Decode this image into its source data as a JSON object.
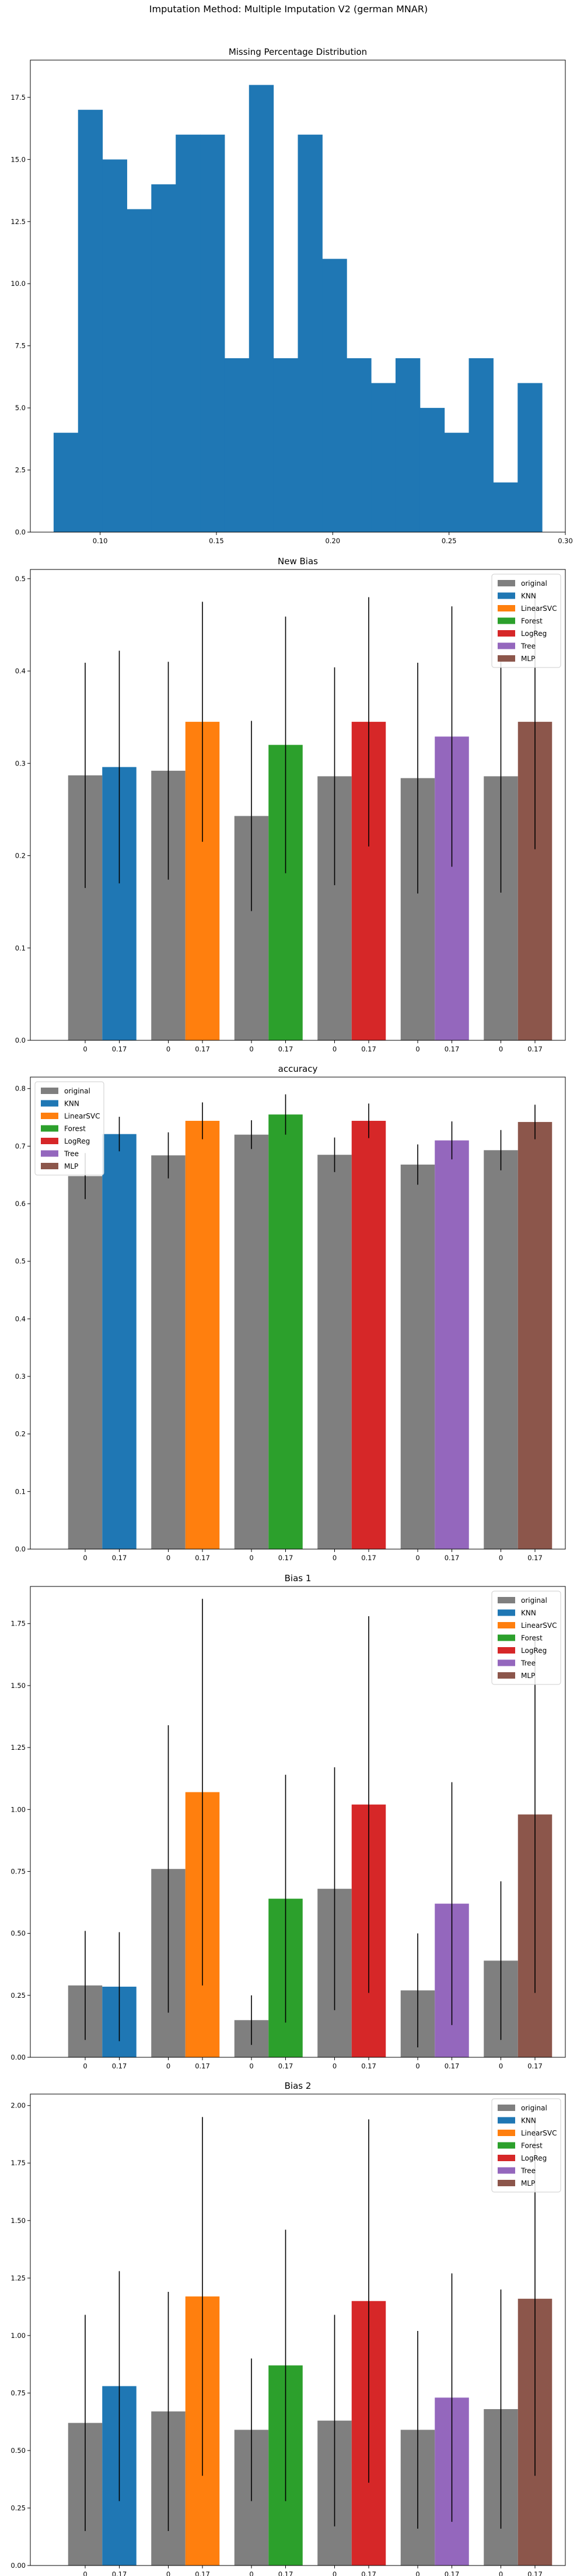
{
  "suptitle": "Imputation Method: Multiple Imputation V2 (german MNAR)",
  "colors": {
    "original": "#7f7f7f",
    "KNN": "#1f77b4",
    "LinearSVC": "#ff7f0e",
    "Forest": "#2ca02c",
    "LogReg": "#d62728",
    "Tree": "#9467bd",
    "MLP": "#8c564b"
  },
  "chart_data": [
    {
      "type": "bar",
      "title": "Missing Percentage Distribution",
      "xlabel": "",
      "ylabel": "",
      "xlim": [
        0.07,
        0.3
      ],
      "ylim": [
        0,
        19
      ],
      "x_ticks": [
        "0.10",
        "0.15",
        "0.20",
        "0.25",
        "0.30"
      ],
      "y_ticks": [
        "0.0",
        "2.5",
        "5.0",
        "7.5",
        "10.0",
        "12.5",
        "15.0",
        "17.5"
      ],
      "bin_edges": [
        0.08,
        0.0905,
        0.101,
        0.1115,
        0.122,
        0.1325,
        0.143,
        0.1535,
        0.164,
        0.1745,
        0.185,
        0.1955,
        0.206,
        0.2165,
        0.227,
        0.2375,
        0.248,
        0.2585,
        0.269,
        0.2795,
        0.29
      ],
      "counts": [
        4,
        17,
        15,
        13,
        14,
        16,
        16,
        7,
        18,
        7,
        16,
        11,
        7,
        6,
        7,
        5,
        4,
        7,
        2,
        6
      ],
      "color": "#1f77b4",
      "grid": false
    },
    {
      "type": "bar",
      "title": "New Bias",
      "ylim": [
        0,
        0.51
      ],
      "y_ticks": [
        "0.0",
        "0.1",
        "0.2",
        "0.3",
        "0.4",
        "0.5"
      ],
      "tick_labels": [
        "0",
        "0.17"
      ],
      "legend": [
        "original",
        "KNN",
        "LinearSVC",
        "Forest",
        "LogReg",
        "Tree",
        "MLP"
      ],
      "legend_position": "top-right",
      "groups": [
        {
          "model": "KNN",
          "original": 0.287,
          "original_err": 0.122,
          "imputed": 0.296,
          "imputed_err": 0.126
        },
        {
          "model": "LinearSVC",
          "original": 0.292,
          "original_err": 0.118,
          "imputed": 0.345,
          "imputed_err": 0.13
        },
        {
          "model": "Forest",
          "original": 0.243,
          "original_err": 0.103,
          "imputed": 0.32,
          "imputed_err": 0.139
        },
        {
          "model": "LogReg",
          "original": 0.286,
          "original_err": 0.118,
          "imputed": 0.345,
          "imputed_err": 0.135
        },
        {
          "model": "Tree",
          "original": 0.284,
          "original_err": 0.125,
          "imputed": 0.329,
          "imputed_err": 0.141
        },
        {
          "model": "MLP",
          "original": 0.286,
          "original_err": 0.126,
          "imputed": 0.345,
          "imputed_err": 0.138
        }
      ]
    },
    {
      "type": "bar",
      "title": "accuracy",
      "ylim": [
        0,
        0.82
      ],
      "y_ticks": [
        "0.0",
        "0.1",
        "0.2",
        "0.3",
        "0.4",
        "0.5",
        "0.6",
        "0.7",
        "0.8"
      ],
      "tick_labels": [
        "0",
        "0.17"
      ],
      "legend": [
        "original",
        "KNN",
        "LinearSVC",
        "Forest",
        "LogReg",
        "Tree",
        "MLP"
      ],
      "legend_position": "top-left",
      "groups": [
        {
          "model": "KNN",
          "original": 0.648,
          "original_err": 0.04,
          "imputed": 0.721,
          "imputed_err": 0.03
        },
        {
          "model": "LinearSVC",
          "original": 0.684,
          "original_err": 0.04,
          "imputed": 0.744,
          "imputed_err": 0.032
        },
        {
          "model": "Forest",
          "original": 0.72,
          "original_err": 0.025,
          "imputed": 0.755,
          "imputed_err": 0.035
        },
        {
          "model": "LogReg",
          "original": 0.685,
          "original_err": 0.03,
          "imputed": 0.744,
          "imputed_err": 0.03
        },
        {
          "model": "Tree",
          "original": 0.668,
          "original_err": 0.035,
          "imputed": 0.71,
          "imputed_err": 0.033
        },
        {
          "model": "MLP",
          "original": 0.693,
          "original_err": 0.035,
          "imputed": 0.742,
          "imputed_err": 0.03
        }
      ]
    },
    {
      "type": "bar",
      "title": "Bias 1",
      "ylim": [
        0,
        1.9
      ],
      "y_ticks": [
        "0.00",
        "0.25",
        "0.50",
        "0.75",
        "1.00",
        "1.25",
        "1.50",
        "1.75"
      ],
      "tick_labels": [
        "0",
        "0.17"
      ],
      "legend": [
        "original",
        "KNN",
        "LinearSVC",
        "Forest",
        "LogReg",
        "Tree",
        "MLP"
      ],
      "legend_position": "top-right",
      "groups": [
        {
          "model": "KNN",
          "original": 0.29,
          "original_err": 0.22,
          "imputed": 0.285,
          "imputed_err": 0.22
        },
        {
          "model": "LinearSVC",
          "original": 0.76,
          "original_err": 0.58,
          "imputed": 1.07,
          "imputed_err": 0.78
        },
        {
          "model": "Forest",
          "original": 0.15,
          "original_err": 0.1,
          "imputed": 0.64,
          "imputed_err": 0.5
        },
        {
          "model": "LogReg",
          "original": 0.68,
          "original_err": 0.49,
          "imputed": 1.02,
          "imputed_err": 0.76
        },
        {
          "model": "Tree",
          "original": 0.27,
          "original_err": 0.23,
          "imputed": 0.62,
          "imputed_err": 0.49
        },
        {
          "model": "MLP",
          "original": 0.39,
          "original_err": 0.32,
          "imputed": 0.98,
          "imputed_err": 0.72
        }
      ]
    },
    {
      "type": "bar",
      "title": "Bias 2",
      "ylim": [
        0,
        2.05
      ],
      "y_ticks": [
        "0.00",
        "0.25",
        "0.50",
        "0.75",
        "1.00",
        "1.25",
        "1.50",
        "1.75",
        "2.00"
      ],
      "tick_labels": [
        "0",
        "0.17"
      ],
      "legend": [
        "original",
        "KNN",
        "LinearSVC",
        "Forest",
        "LogReg",
        "Tree",
        "MLP"
      ],
      "legend_position": "top-right",
      "groups": [
        {
          "model": "KNN",
          "original": 0.62,
          "original_err": 0.47,
          "imputed": 0.78,
          "imputed_err": 0.5
        },
        {
          "model": "LinearSVC",
          "original": 0.67,
          "original_err": 0.52,
          "imputed": 1.17,
          "imputed_err": 0.78
        },
        {
          "model": "Forest",
          "original": 0.59,
          "original_err": 0.31,
          "imputed": 0.87,
          "imputed_err": 0.59
        },
        {
          "model": "LogReg",
          "original": 0.63,
          "original_err": 0.46,
          "imputed": 1.15,
          "imputed_err": 0.79
        },
        {
          "model": "Tree",
          "original": 0.59,
          "original_err": 0.43,
          "imputed": 0.73,
          "imputed_err": 0.54
        },
        {
          "model": "MLP",
          "original": 0.68,
          "original_err": 0.52,
          "imputed": 1.16,
          "imputed_err": 0.77
        }
      ]
    }
  ]
}
